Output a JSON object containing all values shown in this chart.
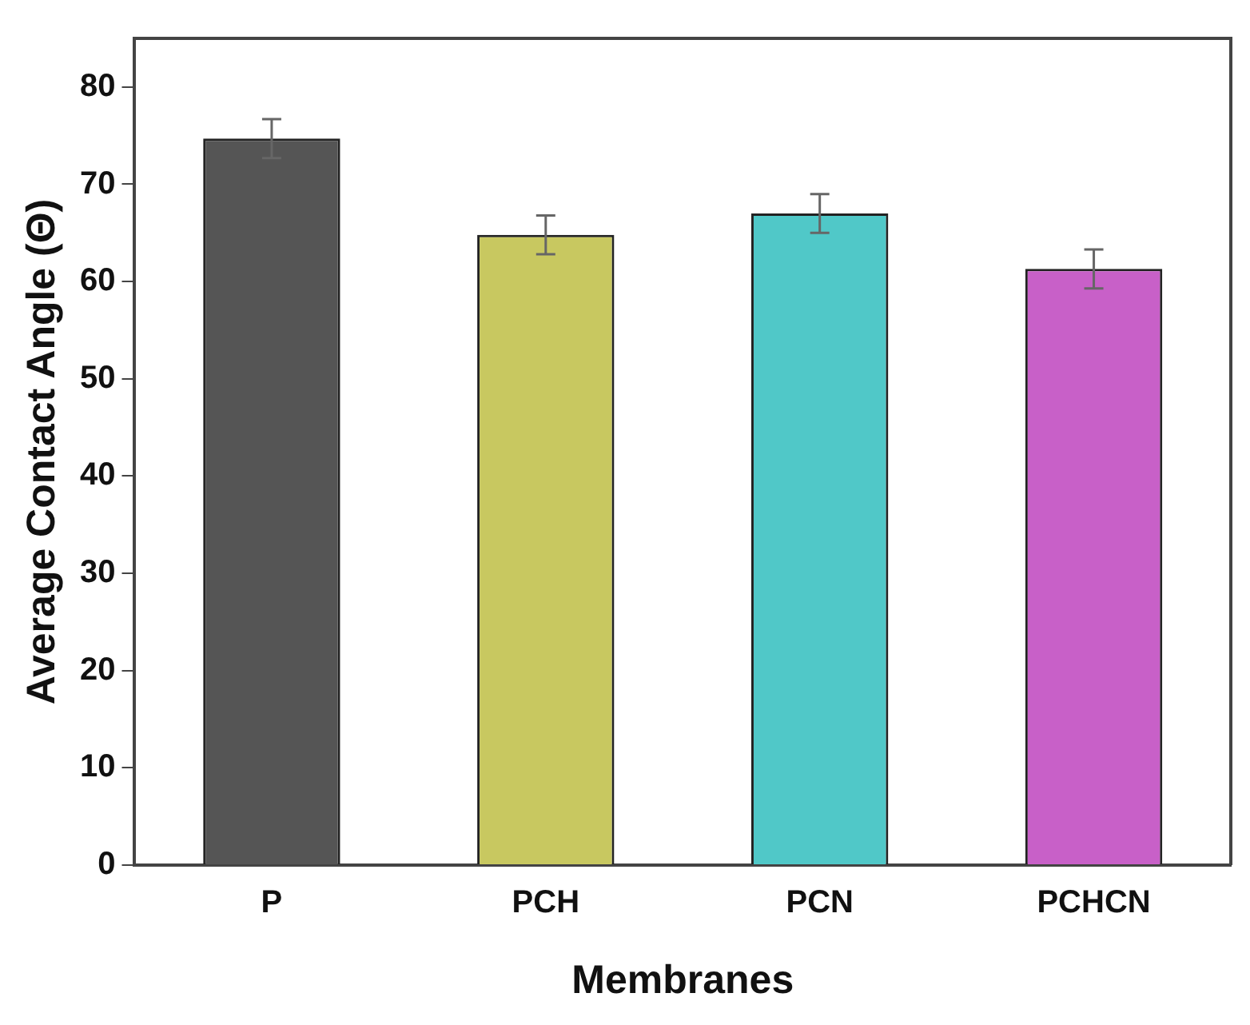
{
  "chart_data": {
    "type": "bar",
    "xlabel": "Membranes",
    "ylabel": "Average Contact Angle (Θ)",
    "categories": [
      "P",
      "PCH",
      "PCN",
      "PCHCN"
    ],
    "values": [
      74.7,
      64.8,
      67.0,
      61.3
    ],
    "errors": [
      2,
      2,
      2,
      2
    ],
    "colors": [
      "#555555",
      "#c8c860",
      "#50c8c8",
      "#c860c8"
    ],
    "ylim": [
      0,
      85
    ],
    "yticks": [
      0,
      10,
      20,
      30,
      40,
      50,
      60,
      70,
      80
    ],
    "grid": false,
    "legend": false
  }
}
